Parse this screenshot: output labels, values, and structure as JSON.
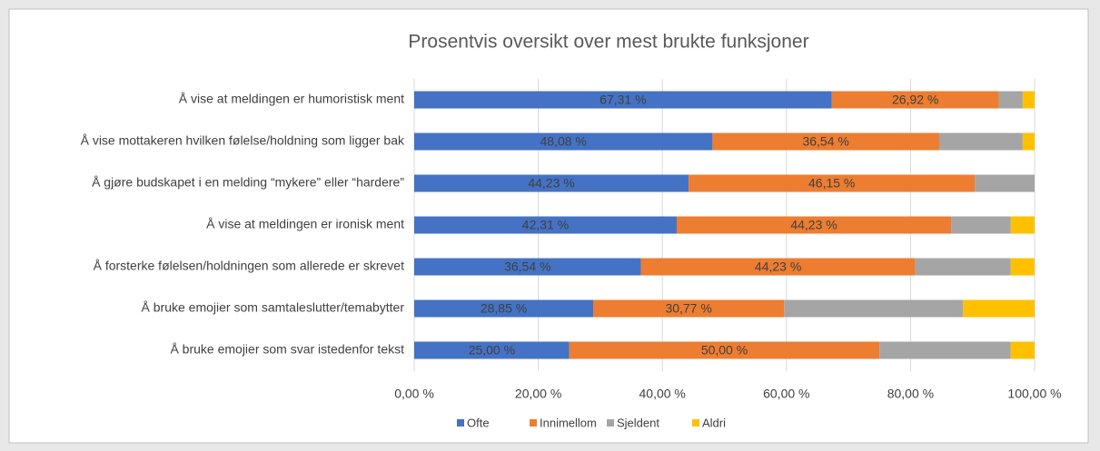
{
  "chart_data": {
    "type": "stacked_bar_horizontal",
    "title": "Prosentvis oversikt over mest brukte funksjoner",
    "categories": [
      "Å vise at meldingen er humoristisk ment",
      "Å vise mottakeren hvilken følelse/holdning som ligger bak",
      "Å gjøre budskapet i en melding “mykere” eller “hardere”",
      "Å vise at meldingen er ironisk ment",
      "Å forsterke følelsen/holdningen som allerede er skrevet",
      "Å bruke emojier som samtaleslutter/temabytter",
      "Å bruke emojier som svar istedenfor tekst"
    ],
    "series": [
      {
        "name": "Ofte",
        "color": "#4472c4",
        "values": [
          67.31,
          48.08,
          44.23,
          42.31,
          36.54,
          28.85,
          25.0
        ],
        "value_labels": [
          "67,31 %",
          "48,08 %",
          "44,23 %",
          "42,31 %",
          "36,54 %",
          "28,85 %",
          "25,00 %"
        ]
      },
      {
        "name": "Innimellom",
        "color": "#ed7d31",
        "values": [
          26.92,
          36.54,
          46.15,
          44.23,
          44.23,
          30.77,
          50.0
        ],
        "value_labels": [
          "26,92 %",
          "36,54 %",
          "46,15 %",
          "44,23 %",
          "44,23 %",
          "30,77 %",
          "50,00 %"
        ]
      },
      {
        "name": "Sjeldent",
        "color": "#a5a5a5",
        "values": [
          3.85,
          13.46,
          9.62,
          9.62,
          15.38,
          28.85,
          21.15
        ]
      },
      {
        "name": "Aldri",
        "color": "#ffc000",
        "values": [
          1.92,
          1.92,
          0,
          3.85,
          3.85,
          11.54,
          3.85
        ]
      }
    ],
    "xlim": [
      0,
      100
    ],
    "xticks": [
      {
        "value": 0,
        "label": "0,00 %"
      },
      {
        "value": 20,
        "label": "20,00 %"
      },
      {
        "value": 40,
        "label": "40,00 %"
      },
      {
        "value": 60,
        "label": "60,00 %"
      },
      {
        "value": 80,
        "label": "80,00 %"
      },
      {
        "value": 100,
        "label": "100,00 %"
      }
    ],
    "grid": true,
    "legend": "bottom"
  }
}
